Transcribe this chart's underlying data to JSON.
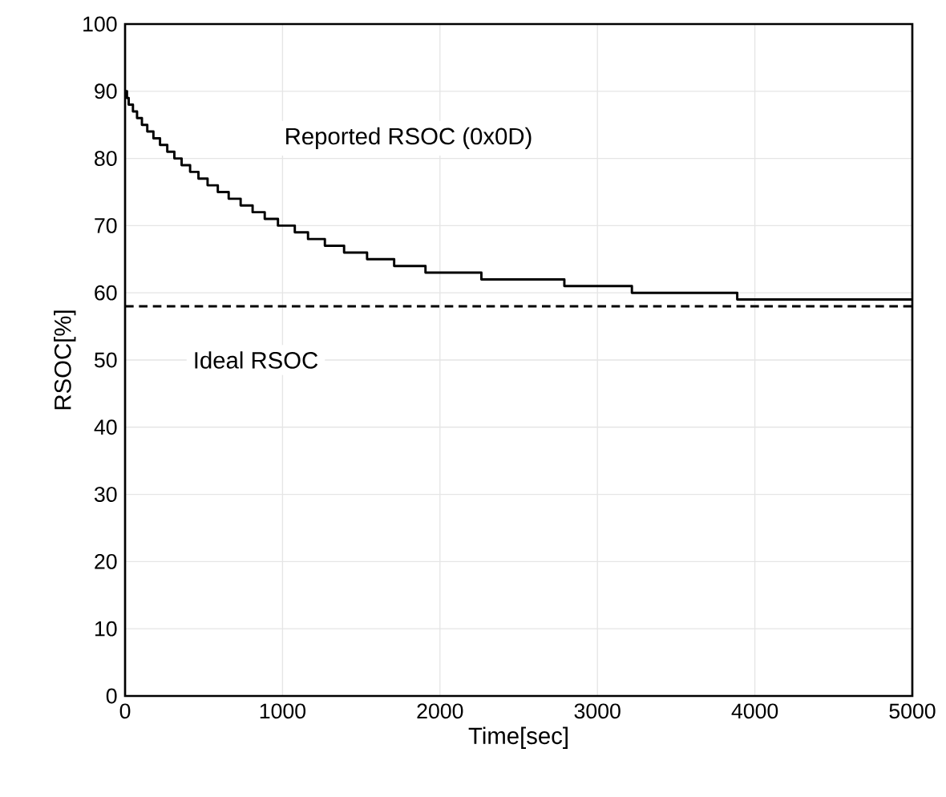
{
  "chart_data": {
    "type": "step",
    "xlabel": "Time[sec]",
    "ylabel": "RSOC[%]",
    "series": [
      {
        "name": "Reported RSOC (0x0D)",
        "color": "#000000",
        "x": [
          0,
          12,
          23,
          50,
          76,
          107,
          141,
          180,
          222,
          268,
          313,
          359,
          413,
          466,
          524,
          589,
          658,
          734,
          810,
          887,
          971,
          1078,
          1162,
          1269,
          1391,
          1537,
          1709,
          1908,
          2263,
          2790,
          3219,
          3888,
          5000
        ],
        "values": [
          90,
          89,
          88,
          87,
          86,
          85,
          84,
          83,
          82,
          81,
          80,
          79,
          78,
          77,
          76,
          75,
          74,
          73,
          72,
          71,
          70,
          69,
          68,
          67,
          66,
          65,
          64,
          63,
          62,
          61,
          60,
          59,
          59
        ]
      }
    ],
    "ref_lines": [
      {
        "axis": "y",
        "value": 58,
        "label": "Ideal RSOC",
        "color": "#000000",
        "line_style": "dashed"
      }
    ],
    "xlim": [
      0,
      5000
    ],
    "ylim": [
      0,
      100
    ],
    "xticks": [
      0,
      1000,
      2000,
      3000,
      4000,
      5000
    ],
    "yticks": [
      0,
      10,
      20,
      30,
      40,
      50,
      60,
      70,
      80,
      90,
      100
    ],
    "grid": true,
    "legend": false,
    "marker": "none",
    "line_style": "solid"
  }
}
